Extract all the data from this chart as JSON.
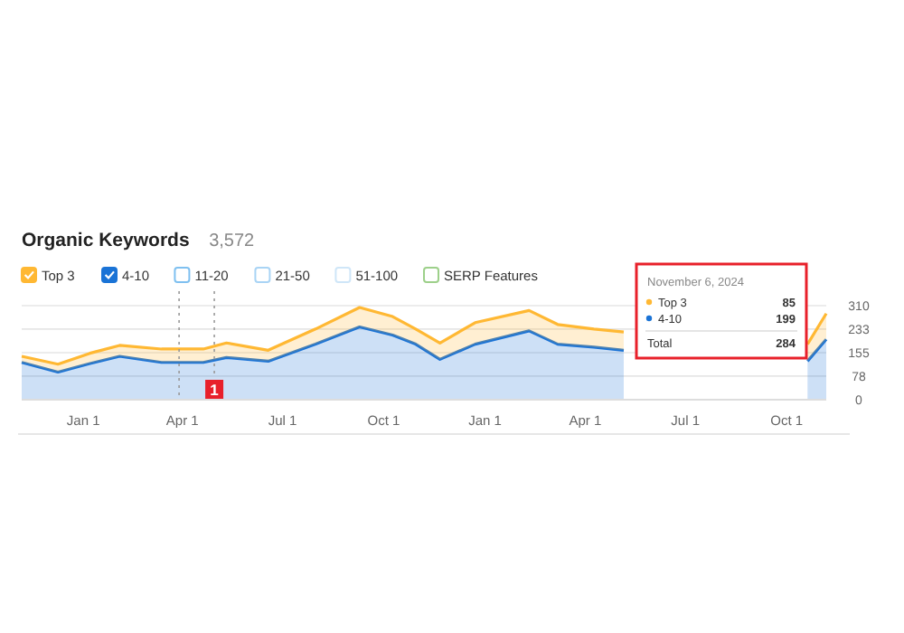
{
  "chart_data": {
    "type": "area",
    "title": "Organic Keywords",
    "subtitle": "3,572",
    "stacked": true,
    "x": [
      "2022-11-06",
      "2022-12-09",
      "2023-01-07",
      "2023-02-03",
      "2023-03-13",
      "2023-04-20",
      "2023-05-11",
      "2023-06-18",
      "2023-07-31",
      "2023-09-09",
      "2023-10-09",
      "2023-10-30",
      "2023-11-21",
      "2023-12-23",
      "2024-02-10",
      "2024-03-07",
      "2024-04-09",
      "2024-05-06",
      "2024-06-07",
      "2024-07-09",
      "2024-08-16",
      "2024-09-12",
      "2024-10-20",
      "2024-11-06"
    ],
    "series": [
      {
        "name": "4-10",
        "color": "#1a73d6",
        "values": [
          123,
          91,
          119,
          143,
          123,
          123,
          139,
          127,
          183,
          240,
          213,
          183,
          133,
          183,
          227,
          183,
          173,
          163,
          null,
          null,
          null,
          null,
          127,
          199
        ]
      },
      {
        "name": "Top 3",
        "color": "#ffb833",
        "values": [
          20,
          26,
          34,
          36,
          44,
          44,
          48,
          36,
          50,
          64,
          61,
          50,
          54,
          71,
          67,
          65,
          60,
          60,
          null,
          null,
          null,
          null,
          56,
          85
        ]
      }
    ],
    "xlim": [
      "2022-11-06",
      "2024-11-06"
    ],
    "xticks": [
      {
        "value": "2023-01-01",
        "label": "Jan 1"
      },
      {
        "value": "2023-04-01",
        "label": "Apr 1"
      },
      {
        "value": "2023-07-01",
        "label": "Jul 1"
      },
      {
        "value": "2023-10-01",
        "label": "Oct 1"
      },
      {
        "value": "2024-01-01",
        "label": "Jan 1"
      },
      {
        "value": "2024-04-01",
        "label": "Apr 1"
      },
      {
        "value": "2024-07-01",
        "label": "Jul 1"
      },
      {
        "value": "2024-10-01",
        "label": "Oct 1"
      }
    ],
    "ylim": [
      0,
      310
    ],
    "yticks": [
      0,
      78,
      155,
      233,
      310
    ],
    "grid": "y",
    "legend": "top left",
    "ref_lines": [
      {
        "axis": "x",
        "value": "2023-03-29",
        "label": null,
        "line_style": "dotted"
      },
      {
        "axis": "x",
        "value": "2023-04-30",
        "label": "1",
        "line_style": "dotted"
      }
    ],
    "annotations": [
      "November 6, 2024",
      "Top 3",
      "85",
      "4-10",
      "199",
      "Total",
      "284",
      "11-20",
      "21-50",
      "51-100",
      "SERP Features"
    ]
  }
}
